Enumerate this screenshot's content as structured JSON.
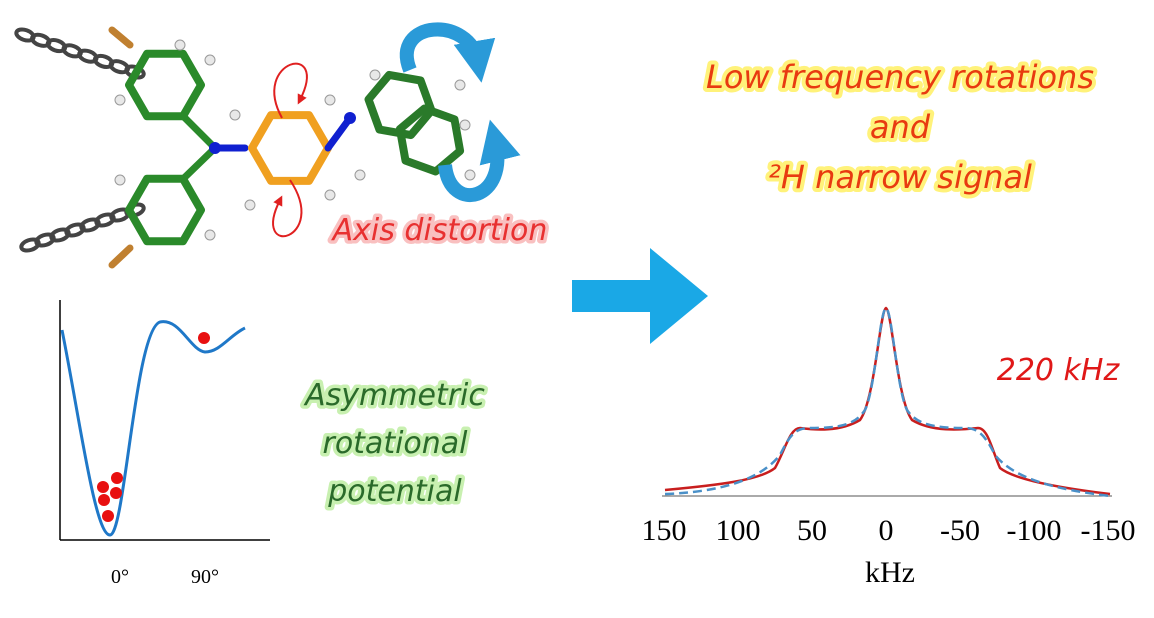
{
  "molecule": {
    "annotation": "Axis distortion"
  },
  "potential": {
    "x_labels": [
      "0°",
      "90°"
    ],
    "caption": [
      "Asymmetric",
      "rotational",
      "potential"
    ]
  },
  "summary": {
    "lines": [
      "Low frequency rotations",
      "and",
      "²H narrow signal"
    ]
  },
  "spectrum": {
    "xticks": [
      150,
      100,
      50,
      0,
      -50,
      -100,
      -150
    ],
    "xlabel": "kHz",
    "annotation": "220 kHz"
  }
}
